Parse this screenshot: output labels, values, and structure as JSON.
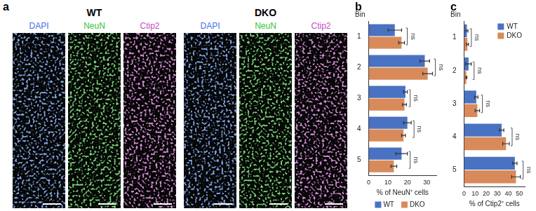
{
  "panel_a": {
    "label": "a",
    "groups": [
      {
        "title": "WT",
        "channels": [
          {
            "name": "DAPI",
            "color": "#3f6fe8"
          },
          {
            "name": "NeuN",
            "color": "#33c433"
          },
          {
            "name": "Ctip2",
            "color": "#c34ec3"
          }
        ]
      },
      {
        "title": "DKO",
        "channels": [
          {
            "name": "DAPI",
            "color": "#3f6fe8"
          },
          {
            "name": "NeuN",
            "color": "#33c433"
          },
          {
            "name": "Ctip2",
            "color": "#c34ec3"
          }
        ]
      }
    ]
  },
  "chart_data": [
    {
      "panel": "b",
      "type": "bar",
      "orientation": "horizontal",
      "y_label": "Bin",
      "x_label": "% of NeuN⁺ cells",
      "categories": [
        "1",
        "2",
        "3",
        "4",
        "5"
      ],
      "series": [
        {
          "name": "WT",
          "color": "#4a72c2",
          "values": [
            13.5,
            29,
            19,
            20,
            17
          ],
          "errors": [
            3.5,
            2.5,
            1,
            2,
            3
          ]
        },
        {
          "name": "DKO",
          "color": "#d98a5b",
          "values": [
            17,
            30.5,
            18.5,
            18,
            13
          ],
          "errors": [
            1.5,
            2.5,
            1,
            1,
            1.5
          ]
        }
      ],
      "xlim": [
        0,
        35
      ],
      "xticks": [
        0,
        10,
        20,
        30
      ],
      "grid": false,
      "legend": "bottom",
      "significance": [
        "ns",
        "ns",
        "ns",
        "ns",
        "ns"
      ]
    },
    {
      "panel": "c",
      "type": "bar",
      "orientation": "horizontal",
      "y_label": "Bin",
      "x_label": "% of Ctip2⁺ cells",
      "categories": [
        "1",
        "2",
        "3",
        "4",
        "5"
      ],
      "series": [
        {
          "name": "WT",
          "color": "#4a72c2",
          "values": [
            2.5,
            4,
            11,
            34,
            46
          ],
          "errors": [
            1,
            2.5,
            1.5,
            2,
            2
          ]
        },
        {
          "name": "DKO",
          "color": "#d98a5b",
          "values": [
            3,
            2,
            12,
            38,
            47
          ],
          "errors": [
            1,
            0.5,
            2,
            3,
            4
          ]
        }
      ],
      "xlim": [
        0,
        55
      ],
      "xticks": [
        0,
        10,
        20,
        30,
        40,
        50
      ],
      "grid": false,
      "legend": "upper right",
      "significance": [
        "ns",
        "ns",
        "ns",
        "ns",
        "ns"
      ]
    }
  ]
}
